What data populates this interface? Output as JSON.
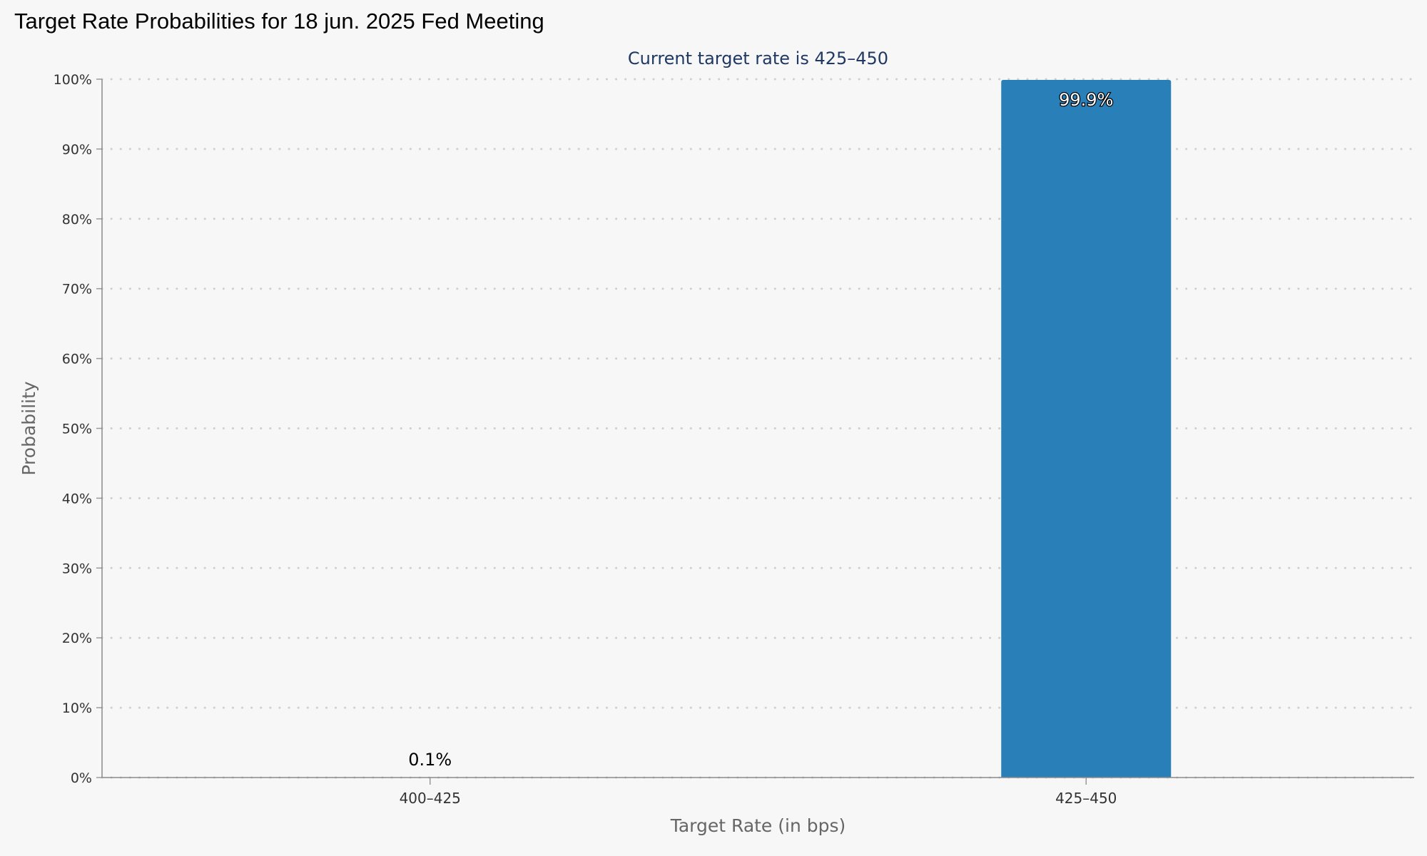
{
  "title": "Target Rate Probabilities for 18 jun. 2025 Fed Meeting",
  "chart_data": {
    "type": "bar",
    "title": "Target Rate Probabilities for 18 jun. 2025 Fed Meeting",
    "subtitle": "Current target rate is 425–450",
    "categories": [
      "400–425",
      "425–450"
    ],
    "values": [
      0.1,
      99.9
    ],
    "data_labels": [
      "0.1%",
      "99.9%"
    ],
    "xlabel": "Target Rate (in bps)",
    "ylabel": "Probability",
    "ylim": [
      0,
      100
    ],
    "yticks": [
      0,
      10,
      20,
      30,
      40,
      50,
      60,
      70,
      80,
      90,
      100
    ],
    "ytick_labels": [
      "0%",
      "10%",
      "20%",
      "30%",
      "40%",
      "50%",
      "60%",
      "70%",
      "80%",
      "90%",
      "100%"
    ],
    "grid": true,
    "grid_style": "dotted",
    "bar_color": "#2980b9",
    "subtitle_color": "#1f3864"
  }
}
